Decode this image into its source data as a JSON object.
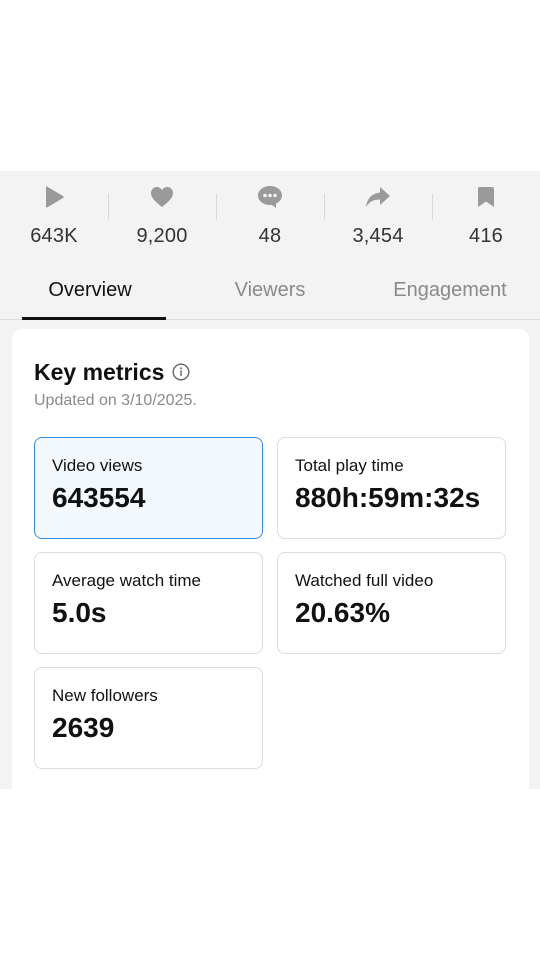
{
  "stats": [
    {
      "icon": "play-icon",
      "value": "643K"
    },
    {
      "icon": "heart-icon",
      "value": "9,200"
    },
    {
      "icon": "comment-icon",
      "value": "48"
    },
    {
      "icon": "share-icon",
      "value": "3,454"
    },
    {
      "icon": "bookmark-icon",
      "value": "416"
    }
  ],
  "tabs": [
    {
      "label": "Overview",
      "active": true
    },
    {
      "label": "Viewers",
      "active": false
    },
    {
      "label": "Engagement",
      "active": false
    }
  ],
  "key_metrics": {
    "title": "Key metrics",
    "updated": "Updated on 3/10/2025.",
    "items": [
      {
        "label": "Video views",
        "value": "643554",
        "selected": true
      },
      {
        "label": "Total play time",
        "value": "880h:59m:32s",
        "selected": false
      },
      {
        "label": "Average watch time",
        "value": "5.0s",
        "selected": false
      },
      {
        "label": "Watched full video",
        "value": "20.63%",
        "selected": false
      },
      {
        "label": "New followers",
        "value": "2639",
        "selected": false
      }
    ]
  },
  "colors": {
    "icon_gray": "#9a9a9a",
    "selected_border": "#3a8edb",
    "selected_bg": "#f3f8fd"
  }
}
